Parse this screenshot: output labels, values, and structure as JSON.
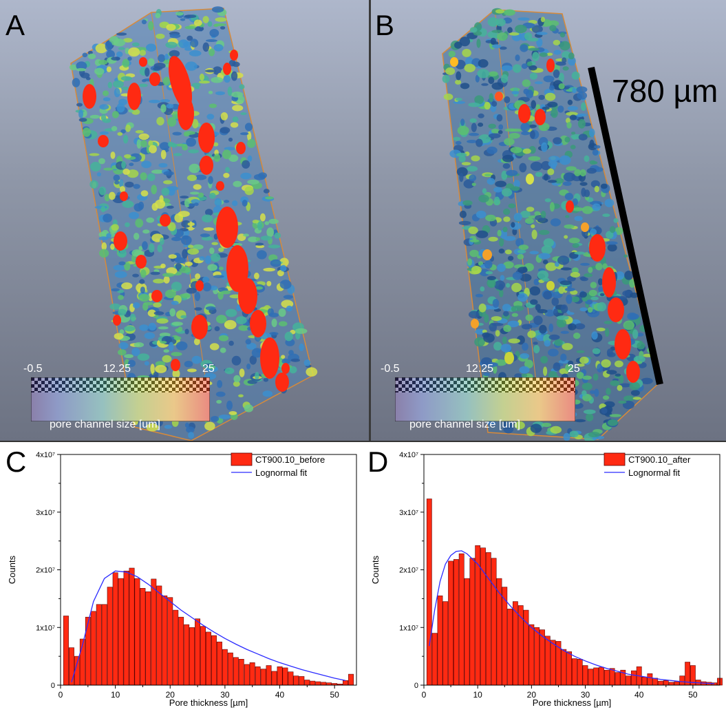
{
  "panels": {
    "a": {
      "letter": "A"
    },
    "b": {
      "letter": "B",
      "scale_bar_label": "780 µm"
    },
    "c": {
      "letter": "C"
    },
    "d": {
      "letter": "D"
    }
  },
  "colorbar": {
    "min_label": "-0.5",
    "mid_label": "12.25",
    "max_label": "25",
    "title": "pore channel size [um]"
  },
  "colors": {
    "bar": "#ff2a12",
    "bar_edge": "#5a0000",
    "fit": "#2b2bff",
    "background_top": "#aeb7cb",
    "background_bottom": "#6c7282"
  },
  "chart_data": [
    {
      "type": "bar",
      "xlabel": "Pore thickness [µm]",
      "ylabel": "Counts",
      "xlim": [
        0,
        54
      ],
      "ylim": [
        0,
        40000000
      ],
      "xticks": [
        0,
        10,
        20,
        30,
        40,
        50
      ],
      "yticks": [
        0,
        10000000,
        20000000,
        30000000,
        40000000
      ],
      "ytick_labels": [
        "0",
        "1x10⁷",
        "2x10⁷",
        "3x10⁷",
        "4x10⁷"
      ],
      "legend_position": "top-right",
      "series": [
        {
          "name": "CT900.10_before",
          "type": "bar",
          "x": [
            1,
            2,
            3,
            4,
            5,
            6,
            7,
            8,
            9,
            10,
            11,
            12,
            13,
            14,
            15,
            16,
            17,
            18,
            19,
            20,
            21,
            22,
            23,
            24,
            25,
            26,
            27,
            28,
            29,
            30,
            31,
            32,
            33,
            34,
            35,
            36,
            37,
            38,
            39,
            40,
            41,
            42,
            43,
            44,
            45,
            46,
            47,
            48,
            49,
            50,
            51,
            52,
            53
          ],
          "values": [
            12000000,
            6500000,
            5000000,
            8000000,
            11800000,
            12800000,
            14000000,
            14000000,
            17000000,
            19500000,
            18500000,
            19800000,
            20300000,
            18500000,
            16800000,
            16200000,
            18400000,
            17200000,
            15500000,
            15200000,
            13000000,
            11800000,
            10500000,
            10000000,
            11500000,
            10200000,
            9200000,
            8600000,
            7500000,
            6200000,
            5600000,
            4800000,
            4500000,
            3600000,
            3900000,
            3200000,
            2800000,
            3400000,
            2400000,
            3200000,
            3000000,
            2300000,
            1600000,
            1500000,
            900000,
            700000,
            600000,
            500000,
            400000,
            300000,
            200000,
            800000,
            1900000
          ]
        },
        {
          "name": "Lognormal fit",
          "type": "line",
          "x": [
            2,
            4,
            6,
            8,
            10,
            12,
            14,
            16,
            18,
            20,
            22,
            24,
            26,
            28,
            30,
            32,
            34,
            36,
            38,
            40,
            42,
            44,
            46,
            48,
            50,
            52
          ],
          "values": [
            500000,
            7000000,
            14500000,
            18500000,
            19800000,
            19600000,
            18800000,
            17500000,
            16000000,
            14500000,
            13000000,
            11700000,
            10400000,
            9200000,
            8100000,
            7100000,
            6200000,
            5400000,
            4600000,
            3900000,
            3300000,
            2700000,
            2200000,
            1700000,
            1200000,
            800000
          ]
        }
      ]
    },
    {
      "type": "bar",
      "xlabel": "Pore thickness [µm]",
      "ylabel": "Counts",
      "xlim": [
        0,
        55
      ],
      "ylim": [
        0,
        40000000
      ],
      "xticks": [
        0,
        10,
        20,
        30,
        40,
        50
      ],
      "yticks": [
        0,
        10000000,
        20000000,
        30000000,
        40000000
      ],
      "ytick_labels": [
        "0",
        "1x10⁷",
        "2x10⁷",
        "3x10⁷",
        "4x10⁷"
      ],
      "legend_position": "top-right",
      "series": [
        {
          "name": "CT900.10_after",
          "type": "bar",
          "x": [
            1,
            2,
            3,
            4,
            5,
            6,
            7,
            8,
            9,
            10,
            11,
            12,
            13,
            14,
            15,
            16,
            17,
            18,
            19,
            20,
            21,
            22,
            23,
            24,
            25,
            26,
            27,
            28,
            29,
            30,
            31,
            32,
            33,
            34,
            35,
            36,
            37,
            38,
            39,
            40,
            41,
            42,
            43,
            44,
            45,
            46,
            47,
            48,
            49,
            50,
            51,
            52,
            53,
            54,
            55
          ],
          "values": [
            32300000,
            9000000,
            15500000,
            14500000,
            21500000,
            21800000,
            22800000,
            18500000,
            22000000,
            24200000,
            23800000,
            23000000,
            22000000,
            18500000,
            17000000,
            13200000,
            14500000,
            13800000,
            13000000,
            10500000,
            10000000,
            9600000,
            8500000,
            7800000,
            7600000,
            6200000,
            5800000,
            4600000,
            4500000,
            3400000,
            2800000,
            3000000,
            3100000,
            2600000,
            2900000,
            2200000,
            2600000,
            1600000,
            2500000,
            3200000,
            1400000,
            2000000,
            1200000,
            700000,
            800000,
            500000,
            600000,
            1600000,
            4000000,
            3400000,
            900000,
            600000,
            500000,
            400000,
            1200000
          ]
        },
        {
          "name": "Lognormal fit",
          "type": "line",
          "x": [
            1,
            2,
            3,
            4,
            5,
            6,
            7,
            8,
            10,
            12,
            14,
            16,
            18,
            20,
            22,
            24,
            26,
            28,
            30,
            32,
            34,
            36,
            38,
            40,
            42,
            44,
            46,
            48,
            50,
            52,
            54
          ],
          "values": [
            6800000,
            13000000,
            18000000,
            21000000,
            22500000,
            23200000,
            23300000,
            22800000,
            21000000,
            18500000,
            16000000,
            13800000,
            11800000,
            10000000,
            8500000,
            7200000,
            6000000,
            5000000,
            4200000,
            3500000,
            2900000,
            2400000,
            1900000,
            1600000,
            1300000,
            1000000,
            800000,
            600000,
            450000,
            350000,
            250000
          ]
        }
      ]
    }
  ]
}
